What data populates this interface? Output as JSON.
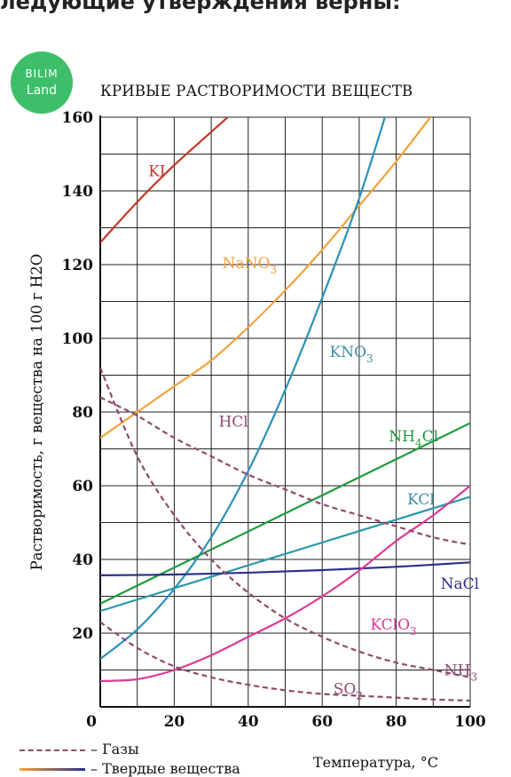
{
  "header_text": "ледующие утверждения верны:",
  "logo": {
    "line1": "BILIM",
    "line2": "Land",
    "color": "#3dbf6a"
  },
  "legend": [
    {
      "style": "dashed",
      "label": "– Газы",
      "color": "#8e4a6e"
    },
    {
      "style": "solid",
      "label": "– Твердые вещества",
      "colors": [
        "#f2a23a",
        "#2c2f8a"
      ]
    }
  ],
  "chart_data": {
    "type": "line",
    "title": "КРИВЫЕ РАСТВОРИМОСТИ ВЕЩЕСТВ",
    "xlabel": "Температура, °С",
    "ylabel": "Растворимость, г вещества на 100 г H2O",
    "xlim": [
      0,
      100
    ],
    "ylim": [
      0,
      160
    ],
    "xticks": [
      0,
      20,
      40,
      60,
      80,
      100
    ],
    "yticks": [
      20,
      40,
      60,
      80,
      100,
      120,
      140,
      160
    ],
    "grid": true,
    "series": [
      {
        "name": "KI",
        "kind": "solid",
        "color": "#c0392b",
        "x": [
          0,
          10,
          20,
          30,
          40
        ],
        "y": [
          126,
          137,
          147,
          156,
          165
        ]
      },
      {
        "name": "NaNO3",
        "kind": "solid",
        "color": "#f2a23a",
        "x": [
          0,
          10,
          20,
          30,
          40,
          50,
          60,
          70,
          80,
          90
        ],
        "y": [
          73,
          80,
          87,
          94,
          103,
          113,
          124,
          136,
          148,
          161
        ]
      },
      {
        "name": "KNO3",
        "kind": "solid",
        "color": "#2b90b8",
        "x": [
          0,
          10,
          20,
          30,
          40,
          50,
          60,
          70,
          80
        ],
        "y": [
          13,
          21,
          32,
          46,
          64,
          86,
          111,
          138,
          170
        ]
      },
      {
        "name": "NH4Cl",
        "kind": "solid",
        "color": "#1f9a3e",
        "x": [
          0,
          100
        ],
        "y": [
          28,
          77
        ]
      },
      {
        "name": "KCl",
        "kind": "solid",
        "color": "#2b9aa8",
        "x": [
          0,
          100
        ],
        "y": [
          26,
          57
        ]
      },
      {
        "name": "NaCl",
        "kind": "solid",
        "color": "#2c2f8a",
        "x": [
          0,
          20,
          40,
          60,
          80,
          100
        ],
        "y": [
          35.7,
          35.9,
          36.4,
          37.1,
          38.0,
          39.2
        ]
      },
      {
        "name": "KClO3",
        "kind": "solid",
        "color": "#de3a96",
        "x": [
          0,
          10,
          20,
          30,
          40,
          50,
          60,
          70,
          80,
          90,
          100
        ],
        "y": [
          7,
          7.5,
          10,
          14,
          19,
          24,
          30,
          37,
          45,
          52,
          60
        ]
      },
      {
        "name": "HCl",
        "kind": "dashed",
        "color": "#8e4a6e",
        "x": [
          0,
          10,
          20,
          30,
          40,
          50,
          60,
          70,
          80,
          90,
          100
        ],
        "y": [
          84,
          79,
          73,
          68,
          63,
          59,
          55,
          52,
          49,
          46,
          44
        ]
      },
      {
        "name": "NH3",
        "kind": "dashed",
        "color": "#8e4a6e",
        "x": [
          0,
          10,
          20,
          30,
          40,
          50,
          60,
          70,
          80,
          90,
          100
        ],
        "y": [
          92,
          68,
          52,
          40,
          31,
          24,
          19,
          15,
          12,
          10,
          8
        ]
      },
      {
        "name": "SO2",
        "kind": "dashed",
        "color": "#8e4a6e",
        "x": [
          0,
          10,
          20,
          30,
          40,
          50,
          60,
          70,
          80,
          90,
          100
        ],
        "y": [
          23,
          16,
          11,
          8,
          6,
          4.5,
          3.5,
          3,
          2.5,
          2,
          1.7
        ]
      }
    ],
    "annotations": [
      {
        "text": "KI",
        "sub": "",
        "color": "#c0392b",
        "x": 13,
        "y": 144
      },
      {
        "text": "NaNO",
        "sub": "3",
        "color": "#f2a23a",
        "x": 33,
        "y": 119
      },
      {
        "text": "KNO",
        "sub": "3",
        "color": "#3a8ea8",
        "x": 62,
        "y": 95
      },
      {
        "text": "HCl",
        "sub": "",
        "color": "#8e4a6e",
        "x": 32,
        "y": 76
      },
      {
        "text": "NH",
        "sub": "4",
        "after": "Cl",
        "color": "#1f9a3e",
        "x": 78,
        "y": 72
      },
      {
        "text": "KCl",
        "sub": "",
        "color": "#3a8ea8",
        "x": 83,
        "y": 55
      },
      {
        "text": "NaCl",
        "sub": "",
        "color": "#2c2f8a",
        "x": 92,
        "y": 32
      },
      {
        "text": "KClO",
        "sub": "3",
        "color": "#de3a96",
        "x": 73,
        "y": 21
      },
      {
        "text": "NH",
        "sub": "3",
        "color": "#8e4a6e",
        "x": 93,
        "y": 8.5
      },
      {
        "text": "SO",
        "sub": "2",
        "color": "#8e4a6e",
        "x": 63,
        "y": 3.5
      }
    ]
  }
}
